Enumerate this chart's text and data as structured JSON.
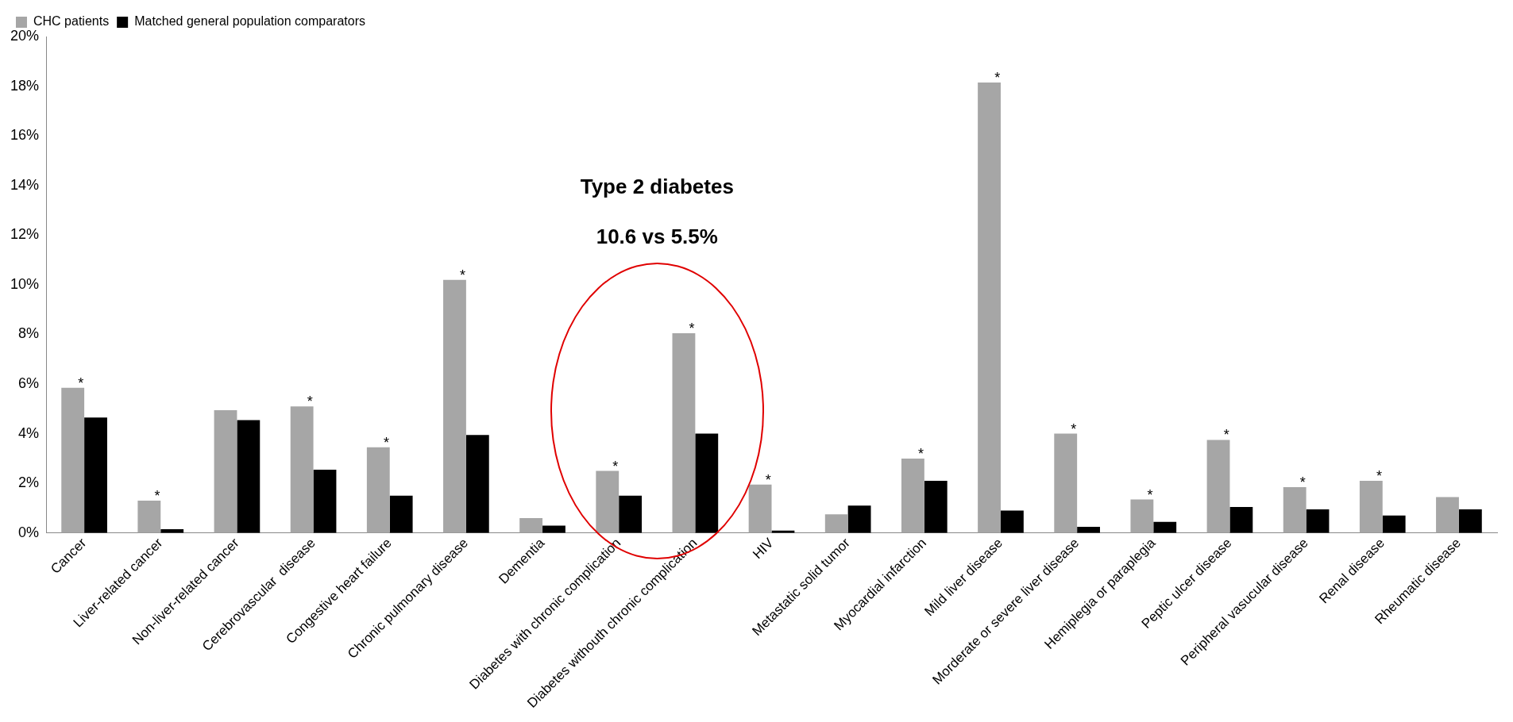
{
  "chart_data": {
    "type": "bar",
    "categories": [
      "Cancer",
      "Liver-related cancer",
      "Non-liver-related cancer",
      "Cerebrovascular  disease",
      "Congestive heart failure",
      "Chronic pulmonary disease",
      "Dementia",
      "Diabetes with chronic complication",
      "Diabetes withouth chronic complication",
      "HIV",
      "Metastatic solid tumor",
      "Myocardial infarction",
      "Mild liver disease",
      "Morderate or severe liver disease",
      "Hemiplegia or paraplegia",
      "Peptic ulcer disease",
      "Peripheral vasucular disease",
      "Renal disease",
      "Rheumatic disease"
    ],
    "series": [
      {
        "name": "CHC patients",
        "color": "#a6a6a6",
        "values": [
          5.85,
          1.3,
          4.95,
          5.1,
          3.45,
          10.2,
          0.6,
          2.5,
          8.05,
          1.95,
          0.75,
          3.0,
          18.15,
          4.0,
          1.35,
          3.75,
          1.85,
          2.1,
          1.45
        ],
        "value_labels": [
          "*",
          "*",
          null,
          "*",
          "*",
          "*",
          null,
          "*",
          "*",
          "*",
          null,
          "*",
          "*",
          "*",
          "*",
          "*",
          "*",
          "*",
          null
        ]
      },
      {
        "name": "Matched general population comparators",
        "color": "#000000",
        "values": [
          4.65,
          0.15,
          4.55,
          2.55,
          1.5,
          3.95,
          0.3,
          1.5,
          4.0,
          0.1,
          1.1,
          2.1,
          0.9,
          0.25,
          0.45,
          1.05,
          0.95,
          0.7,
          0.95
        ]
      }
    ],
    "ylim": [
      0,
      20
    ],
    "yticks": [
      {
        "value": 0,
        "label": "0%"
      },
      {
        "value": 2,
        "label": "2%"
      },
      {
        "value": 4,
        "label": "4%"
      },
      {
        "value": 6,
        "label": "6%"
      },
      {
        "value": 8,
        "label": "8%"
      },
      {
        "value": 10,
        "label": "10%"
      },
      {
        "value": 12,
        "label": "12%"
      },
      {
        "value": 14,
        "label": "14%"
      },
      {
        "value": 16,
        "label": "16%"
      },
      {
        "value": 18,
        "label": "18%"
      },
      {
        "value": 20,
        "label": "20%"
      }
    ],
    "grid": false,
    "legend": "top left",
    "annotations": [
      "Type 2 diabetes",
      "10.6 vs 5.5%"
    ]
  }
}
